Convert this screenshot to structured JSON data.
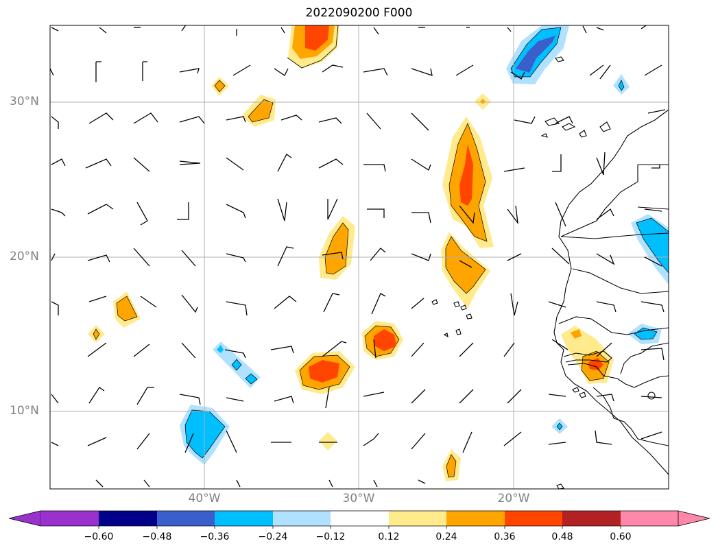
{
  "title": "2022090200 F000",
  "y_labels": [
    "30°N",
    "20°N",
    "10°N"
  ],
  "x_labels": [
    "40°W",
    "30°W",
    "20°W"
  ],
  "map_extent": {
    "lon": [
      -50.0,
      -10.0
    ],
    "lat": [
      5.0,
      35.0
    ]
  },
  "gridlines": {
    "lon": [
      -40,
      -30,
      -20
    ],
    "lat": [
      10,
      20,
      30
    ]
  },
  "colorbar": {
    "levels": [
      "−0.60",
      "−0.48",
      "−0.36",
      "−0.24",
      "−0.12",
      "0.12",
      "0.24",
      "0.36",
      "0.48",
      "0.60"
    ],
    "colors": [
      "#9932cc",
      "#00008b",
      "#3a5fcd",
      "#00bfff",
      "#b0e2ff",
      "#ffffff",
      "#ffea8c",
      "#ffa500",
      "#ff4500",
      "#b22222",
      "#ff88aa"
    ],
    "extend": "both"
  },
  "style_colors": {
    "grid": "#b0b0b0",
    "frame": "#000000",
    "labels": "#808080"
  }
}
